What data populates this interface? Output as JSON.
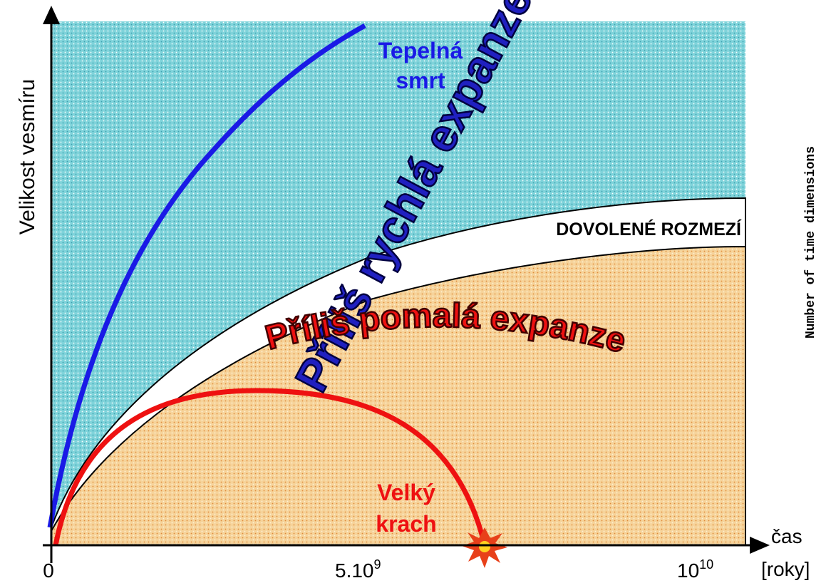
{
  "axes": {
    "y_label": "Velikost vesmíru",
    "x_label": "čas",
    "x_unit": "[roky]",
    "x_ticks": [
      {
        "base": "0"
      },
      {
        "base": "5.10",
        "exponent": "9"
      },
      {
        "base": "10",
        "exponent": "10"
      }
    ]
  },
  "regions": {
    "fast": "Příliš rychlá expanze",
    "allowed": "DOVOLENÉ ROZMEZÍ",
    "slow": "Příliš pomalá expanze"
  },
  "curves": {
    "heat_death": [
      "Tepelná",
      "smrt"
    ],
    "big_crunch": [
      "Velký",
      "krach"
    ]
  },
  "side_text": "Number of time dimensions"
}
